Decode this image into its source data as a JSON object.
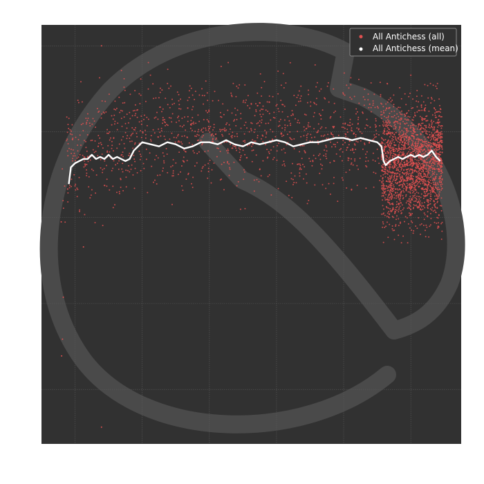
{
  "chart_data": {
    "type": "scatter",
    "title": "",
    "xlabel": "",
    "ylabel": "",
    "x_range": [
      0,
      1000
    ],
    "y_range": [
      0,
      100
    ],
    "grid": true,
    "legend_position": "top-right",
    "series": [
      {
        "name": "All Antichess (all)",
        "kind": "scatter",
        "color": "#e05050",
        "density_regions": [
          {
            "x_start": 45,
            "x_end": 60,
            "y_min": 42,
            "y_max": 82,
            "density": "sparse"
          },
          {
            "x_start": 60,
            "x_end": 190,
            "y_min": 55,
            "y_max": 85,
            "density": "medium"
          },
          {
            "x_start": 190,
            "x_end": 810,
            "y_min": 60,
            "y_max": 87,
            "density": "medium"
          },
          {
            "x_start": 810,
            "x_end": 955,
            "y_min": 52,
            "y_max": 82,
            "density": "dense"
          }
        ],
        "outliers": [
          {
            "x": 47,
            "y": 53
          },
          {
            "x": 48,
            "y": 21
          },
          {
            "x": 50,
            "y": 25
          },
          {
            "x": 143,
            "y": 4
          },
          {
            "x": 143,
            "y": 95
          },
          {
            "x": 52,
            "y": 35
          },
          {
            "x": 100,
            "y": 47
          },
          {
            "x": 880,
            "y": 88
          }
        ]
      },
      {
        "name": "All Antichess (mean)",
        "kind": "line",
        "color": "#ffffff",
        "x": [
          65,
          70,
          80,
          90,
          100,
          110,
          120,
          130,
          140,
          150,
          160,
          170,
          180,
          190,
          200,
          210,
          220,
          240,
          260,
          280,
          300,
          320,
          340,
          360,
          380,
          400,
          420,
          440,
          460,
          480,
          500,
          520,
          540,
          560,
          580,
          600,
          620,
          640,
          660,
          680,
          700,
          720,
          740,
          760,
          780,
          800,
          810,
          815,
          820,
          830,
          840,
          850,
          860,
          870,
          880,
          890,
          900,
          910,
          920,
          930,
          940,
          950
        ],
        "y": [
          62,
          66,
          67,
          67.5,
          68,
          68,
          69,
          68,
          68.5,
          68,
          69,
          68,
          68.5,
          68,
          67.5,
          68,
          70,
          72,
          71.5,
          71,
          72,
          71.5,
          70.5,
          71,
          72,
          72,
          71.5,
          72.5,
          71.5,
          71,
          72,
          71.5,
          72,
          72.5,
          72,
          71,
          71.5,
          72,
          72,
          72.5,
          73,
          73,
          72.5,
          73,
          72.5,
          72,
          71,
          67.5,
          66.5,
          67.5,
          68,
          68.5,
          68,
          68.5,
          69,
          68.5,
          69,
          68.5,
          69,
          70,
          68.5,
          67.5
        ]
      }
    ],
    "watermark": "horse-knight-logo"
  }
}
